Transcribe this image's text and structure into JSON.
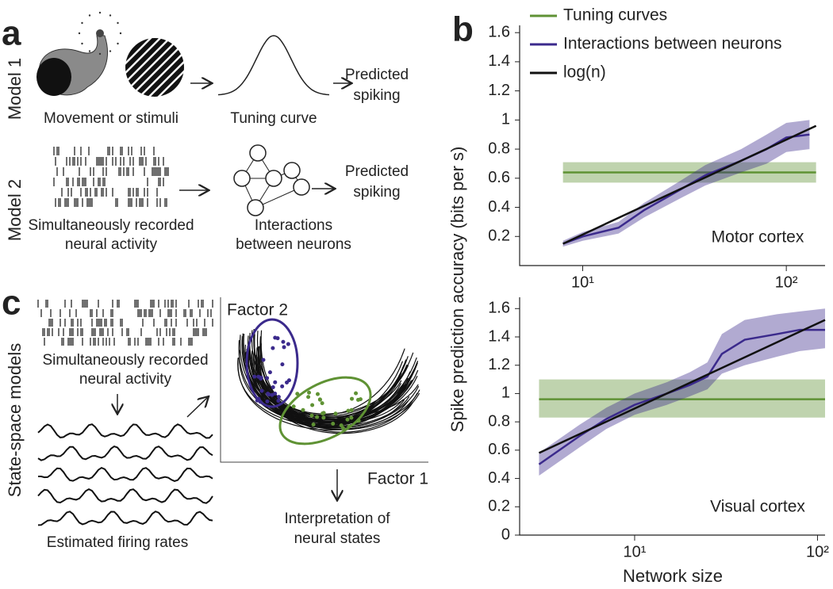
{
  "panel_a": {
    "label": "a",
    "model1": "Model 1",
    "model2": "Model 2",
    "stimuli": "Movement or stimuli",
    "tuning": "Tuning curve",
    "predicted1": [
      "Predicted",
      "spiking"
    ],
    "predicted2": [
      "Predicted",
      "spiking"
    ],
    "recorded": [
      "Simultaneously recorded",
      "neural activity"
    ],
    "interactions": [
      "Interactions",
      "between neurons"
    ]
  },
  "panel_b": {
    "label": "b",
    "ylabel": "Spike prediction accuracy (bits per s)",
    "xlabel": "Network size"
  },
  "panel_c": {
    "label": "c",
    "side": "State-space models",
    "recorded": [
      "Simultaneously recorded",
      "neural activity"
    ],
    "rates": "Estimated firing rates",
    "factor2": "Factor 2",
    "factor1": "Factor 1",
    "interpretation": [
      "Interpretation of",
      "neural states"
    ]
  },
  "chart_data": [
    {
      "type": "line",
      "annotation": "Motor cortex",
      "xscale": "log",
      "legend": "upper left",
      "xlim": [
        4.9,
        155
      ],
      "xticks": [
        {
          "value": 10,
          "label": "10¹"
        },
        {
          "value": 100,
          "label": "10²"
        }
      ],
      "ylim": [
        0,
        1.65
      ],
      "yticks": [
        0.2,
        0.4,
        0.6,
        0.8,
        1.0,
        1.2,
        1.4,
        1.6
      ],
      "series": [
        {
          "name": "Tuning curves",
          "color": "#5f9234",
          "x": [
            8,
            140
          ],
          "values": [
            0.64,
            0.64
          ],
          "lower": [
            0.57,
            0.57
          ],
          "upper": [
            0.71,
            0.71
          ]
        },
        {
          "name": "Interactions between neurons",
          "color": "#3b2a8c",
          "x": [
            8,
            10,
            15,
            20,
            30,
            40,
            60,
            80,
            100,
            130
          ],
          "values": [
            0.15,
            0.2,
            0.26,
            0.38,
            0.52,
            0.62,
            0.72,
            0.8,
            0.88,
            0.9
          ],
          "lower": [
            0.13,
            0.17,
            0.22,
            0.33,
            0.46,
            0.55,
            0.64,
            0.7,
            0.78,
            0.8
          ],
          "upper": [
            0.17,
            0.23,
            0.3,
            0.43,
            0.58,
            0.69,
            0.8,
            0.9,
            0.98,
            1.0
          ]
        },
        {
          "name": "log(n)",
          "color": "#111111",
          "x": [
            8,
            140
          ],
          "values": [
            0.15,
            0.96
          ]
        }
      ]
    },
    {
      "type": "line",
      "annotation": "Visual cortex",
      "xscale": "log",
      "xlim": [
        2.35,
        110
      ],
      "xticks": [
        {
          "value": 10,
          "label": "10¹"
        },
        {
          "value": 100,
          "label": "10²"
        }
      ],
      "ylim": [
        0,
        1.68
      ],
      "yticks": [
        0,
        0.2,
        0.4,
        0.6,
        0.8,
        1.0,
        1.2,
        1.4,
        1.6
      ],
      "series": [
        {
          "name": "Tuning curves",
          "color": "#5f9234",
          "x": [
            3,
            110
          ],
          "values": [
            0.96,
            0.96
          ],
          "lower": [
            0.83,
            0.83
          ],
          "upper": [
            1.1,
            1.1
          ]
        },
        {
          "name": "Interactions between neurons",
          "color": "#3b2a8c",
          "x": [
            3,
            5,
            7,
            10,
            15,
            20,
            25,
            30,
            40,
            60,
            80,
            110
          ],
          "values": [
            0.5,
            0.7,
            0.82,
            0.92,
            1.0,
            1.06,
            1.12,
            1.28,
            1.38,
            1.42,
            1.45,
            1.45
          ],
          "lower": [
            0.42,
            0.62,
            0.75,
            0.85,
            0.92,
            0.98,
            1.03,
            1.14,
            1.2,
            1.26,
            1.3,
            1.32
          ],
          "upper": [
            0.58,
            0.78,
            0.9,
            1.0,
            1.08,
            1.15,
            1.22,
            1.42,
            1.52,
            1.56,
            1.58,
            1.6
          ]
        },
        {
          "name": "log(n)",
          "color": "#111111",
          "x": [
            3,
            110
          ],
          "values": [
            0.58,
            1.52
          ]
        }
      ]
    }
  ]
}
